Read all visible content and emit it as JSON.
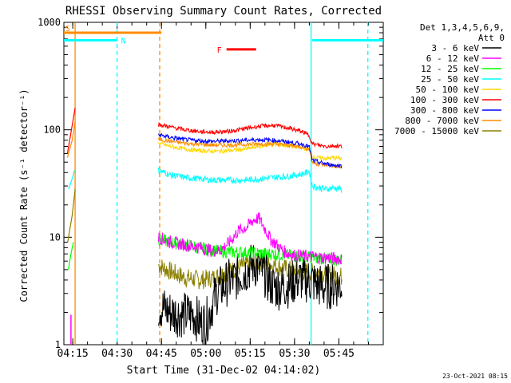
{
  "chart_data": {
    "type": "line",
    "title": "RHESSI Observing Summary Count Rates, Corrected",
    "xlabel": "Start Time (31-Dec-02 04:14:02)",
    "ylabel": "Corrected Count Rate (s⁻¹ detector⁻¹)",
    "xlim_min": [
      14,
      122
    ],
    "ylim": [
      1,
      1000
    ],
    "yscale": "log",
    "x_ticks": [
      {
        "v": 17,
        "label": "04:15"
      },
      {
        "v": 32,
        "label": "04:30"
      },
      {
        "v": 47,
        "label": "04:45"
      },
      {
        "v": 62,
        "label": "05:00"
      },
      {
        "v": 77,
        "label": "05:15"
      },
      {
        "v": 92,
        "label": "05:30"
      },
      {
        "v": 107,
        "label": "05:45"
      }
    ],
    "y_ticks": [
      {
        "v": 1,
        "label": "1"
      },
      {
        "v": 10,
        "label": "10"
      },
      {
        "v": 100,
        "label": "100"
      },
      {
        "v": 1000,
        "label": "1000"
      }
    ],
    "legend_title": [
      "Det 1,3,4,5,6,9,",
      "Att 0"
    ],
    "series": [
      {
        "name": "3 - 6 keV",
        "color": "#000000",
        "x": [
          46,
          50,
          54,
          58,
          60,
          62,
          63,
          64,
          66,
          68,
          70,
          72,
          74,
          76,
          78,
          80,
          82,
          84,
          86,
          88,
          90,
          92,
          94,
          96,
          98,
          100,
          102,
          104,
          106,
          108
        ],
        "y": [
          2.3,
          2.0,
          1.9,
          1.9,
          1.6,
          1.6,
          1.9,
          2.3,
          3.2,
          3.5,
          3.9,
          4.1,
          4.6,
          5.0,
          5.6,
          5.2,
          4.5,
          3.6,
          3.4,
          3.5,
          3.6,
          3.9,
          4.1,
          4.0,
          3.9,
          3.6,
          3.4,
          3.5,
          3.6,
          3.6
        ]
      },
      {
        "name": "6 - 12 keV",
        "color": "#ff00ff",
        "x": [
          46,
          50,
          55,
          60,
          64,
          67,
          70,
          73,
          76,
          78,
          80,
          82,
          84,
          86,
          88,
          90,
          92,
          95,
          100,
          108
        ],
        "y": [
          10,
          9,
          8.5,
          8.0,
          7.5,
          7.6,
          9.0,
          11.5,
          12.5,
          14.5,
          15,
          12,
          9.5,
          8.5,
          7.5,
          7.0,
          6.8,
          6.7,
          6.5,
          6.3
        ]
      },
      {
        "name": "12 - 25 keV",
        "color": "#00ff00",
        "x": [
          46,
          50,
          55,
          60,
          65,
          70,
          75,
          80,
          85,
          90,
          95,
          100,
          105,
          108
        ],
        "y": [
          9.5,
          9.0,
          8.5,
          8.0,
          7.5,
          7.3,
          7.2,
          7.1,
          7.0,
          6.8,
          6.6,
          6.4,
          6.2,
          6.1
        ]
      },
      {
        "name": "25 - 50 keV",
        "color": "#00ffff",
        "x": [
          46,
          50,
          55,
          60,
          65,
          70,
          75,
          80,
          85,
          90,
          95,
          97,
          98,
          100,
          103,
          105,
          108
        ],
        "y": [
          42,
          38,
          36,
          35,
          34,
          34,
          34,
          35,
          36,
          37,
          39,
          41,
          30,
          29,
          28,
          29,
          28
        ]
      },
      {
        "name": "50 - 100 keV",
        "color": "#ffd700",
        "x": [
          46,
          50,
          55,
          60,
          65,
          70,
          75,
          80,
          85,
          90,
          95,
          97,
          98,
          100,
          103,
          105,
          108
        ],
        "y": [
          75,
          70,
          66,
          64,
          63,
          64,
          66,
          70,
          73,
          71,
          68,
          64,
          56,
          55,
          54,
          55,
          54
        ]
      },
      {
        "name": "100 - 300 keV",
        "color": "#ff0000",
        "x": [
          46,
          50,
          55,
          60,
          65,
          70,
          75,
          80,
          85,
          90,
          95,
          97,
          98,
          100,
          103,
          105,
          108
        ],
        "y": [
          112,
          106,
          100,
          96,
          95,
          97,
          102,
          108,
          110,
          104,
          95,
          88,
          74,
          72,
          70,
          71,
          70
        ]
      },
      {
        "name": "300 - 800 keV",
        "color": "#0000ff",
        "x": [
          46,
          50,
          55,
          60,
          65,
          70,
          75,
          80,
          85,
          90,
          95,
          97,
          98,
          100,
          103,
          105,
          108
        ],
        "y": [
          90,
          85,
          81,
          79,
          78,
          79,
          80,
          81,
          80,
          77,
          73,
          69,
          52,
          50,
          48,
          47,
          46
        ]
      },
      {
        "name": "800 - 7000 keV",
        "color": "#ff8c00",
        "x": [
          46,
          50,
          55,
          60,
          65,
          70,
          75,
          80,
          85,
          90,
          95,
          97,
          98,
          100,
          103,
          105,
          108
        ],
        "y": [
          82,
          78,
          75,
          73,
          72,
          72,
          73,
          74,
          74,
          72,
          69,
          66,
          50,
          48,
          47,
          46,
          45
        ]
      },
      {
        "name": "7000 - 15000 keV",
        "color": "#8b8000",
        "x": [
          46,
          50,
          55,
          60,
          65,
          70,
          75,
          80,
          85,
          90,
          95,
          100,
          105,
          108
        ],
        "y": [
          5.5,
          4.8,
          4.2,
          4.0,
          4.2,
          4.8,
          5.5,
          5.8,
          5.5,
          5.0,
          4.8,
          4.7,
          4.5,
          4.3
        ]
      }
    ],
    "early_segments": [
      {
        "color": "#ff0000",
        "x": [
          15.2,
          16.8,
          17.8
        ],
        "y": [
          60,
          110,
          160
        ]
      },
      {
        "color": "#ff8c00",
        "x": [
          15.2,
          16.8,
          17.8
        ],
        "y": [
          55,
          80,
          120
        ]
      },
      {
        "color": "#00ffff",
        "x": [
          15.6,
          16.8,
          17.6
        ],
        "y": [
          28,
          35,
          42
        ]
      },
      {
        "color": "#8b8000",
        "x": [
          15.3,
          16.8,
          17.8
        ],
        "y": [
          9,
          16,
          28
        ]
      },
      {
        "color": "#00ff00",
        "x": [
          15.5,
          16.4,
          17.2
        ],
        "y": [
          5,
          7,
          9
        ]
      }
    ],
    "flag_bars": [
      {
        "label": "S",
        "color": "#ff8c00",
        "x0": 14,
        "x1": 47,
        "y": 800
      },
      {
        "label": "N",
        "color": "#00ffff",
        "x0": 14,
        "x1": 32,
        "y": 680
      },
      {
        "label": "N",
        "color": "#00ffff",
        "x0": 98,
        "x1": 122,
        "y": 680
      },
      {
        "label": "F",
        "color": "#ff0000",
        "x0": 69,
        "x1": 79,
        "y": 560
      }
    ],
    "vertical_lines": [
      {
        "x": 17.8,
        "color": "#ff8c00",
        "style": "solid"
      },
      {
        "x": 32,
        "color": "#00ffff",
        "style": "dashed"
      },
      {
        "x": 46.4,
        "color": "#ff8c00",
        "style": "dashed"
      },
      {
        "x": 97.6,
        "color": "#00ffff",
        "style": "solid"
      },
      {
        "x": 116.8,
        "color": "#00ffff",
        "style": "dashed"
      }
    ],
    "footer_date": "23-Oct-2021 08:15"
  }
}
